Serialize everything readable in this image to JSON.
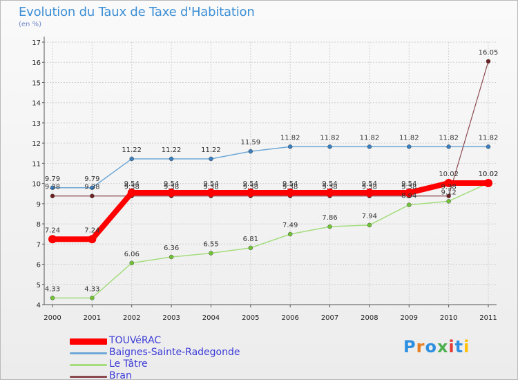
{
  "title": "Evolution du Taux de Taxe d'Habitation",
  "unit": "(en %)",
  "logo": {
    "text": "Proxiti",
    "letters": [
      "P",
      "r",
      "o",
      "x",
      "i",
      "t",
      "i"
    ],
    "colors": [
      "#2e8fe0",
      "#e67e22",
      "#2e8fe0",
      "#4caf50",
      "#e53935",
      "#2e8fe0",
      "#ffc107"
    ]
  },
  "chart_data": {
    "type": "line",
    "title": "Evolution du Taux de Taxe d'Habitation",
    "ylabel": "(en %)",
    "xlabel": "",
    "x": [
      "2000",
      "2001",
      "2002",
      "2003",
      "2004",
      "2005",
      "2006",
      "2007",
      "2008",
      "2009",
      "2010",
      "2011"
    ],
    "ylim": [
      4,
      17
    ],
    "yticks": [
      4,
      5,
      6,
      7,
      8,
      9,
      10,
      11,
      12,
      13,
      14,
      15,
      16,
      17
    ],
    "grid": true,
    "legend_position": "bottom-left",
    "series": [
      {
        "name": "Baignes-Sainte-Radegonde",
        "color": "#6fa8d6",
        "marker": "#3a7fc0",
        "width": 1.5,
        "values": [
          9.79,
          9.79,
          11.22,
          11.22,
          11.22,
          11.59,
          11.82,
          11.82,
          11.82,
          11.82,
          11.82,
          11.82
        ],
        "labels": [
          "9.79",
          "9.79",
          "11.22",
          "11.22",
          "11.22",
          "11.59",
          "11.82",
          "11.82",
          "11.82",
          "11.82",
          "11.82",
          "11.82"
        ]
      },
      {
        "name": "Le Tâtre",
        "color": "#a5dd7e",
        "marker": "#72c434",
        "width": 1.5,
        "values": [
          4.33,
          4.33,
          6.06,
          6.36,
          6.55,
          6.81,
          7.49,
          7.86,
          7.94,
          8.94,
          9.12,
          10.02
        ],
        "labels": [
          "4.33",
          "4.33",
          "6.06",
          "6.36",
          "6.55",
          "6.81",
          "7.49",
          "7.86",
          "7.94",
          "8.94",
          "9.12",
          "10.02"
        ]
      },
      {
        "name": "Bran",
        "color": "#8b4a50",
        "marker": "#6e1f22",
        "width": 1.2,
        "values": [
          9.38,
          9.38,
          9.38,
          9.38,
          9.38,
          9.38,
          9.38,
          9.38,
          9.38,
          9.38,
          9.38,
          16.05
        ],
        "labels": [
          "9.38",
          "9.38",
          "9.38",
          "9.38",
          "9.38",
          "9.38",
          "9.38",
          "9.38",
          "9.38",
          "9.38",
          "9.38",
          "16.05"
        ]
      },
      {
        "name": "TOUVéRAC",
        "color": "#ff0000",
        "marker": "#ff0000",
        "width": 8,
        "values": [
          7.24,
          7.24,
          9.54,
          9.54,
          9.54,
          9.54,
          9.54,
          9.54,
          9.54,
          9.54,
          10.02,
          10.02
        ],
        "labels": [
          "7.24",
          "7.24",
          "9.54",
          "9.54",
          "9.54",
          "9.54",
          "9.54",
          "9.54",
          "9.54",
          "9.54",
          "10.02",
          "10.02"
        ]
      }
    ]
  },
  "legend": {
    "items": [
      {
        "name": "TOUVéRAC",
        "color": "#ff0000"
      },
      {
        "name": "Baignes-Sainte-Radegonde",
        "color": "#6fa8d6"
      },
      {
        "name": "Le Tâtre",
        "color": "#a5dd7e"
      },
      {
        "name": "Bran",
        "color": "#8b4a50"
      }
    ]
  }
}
